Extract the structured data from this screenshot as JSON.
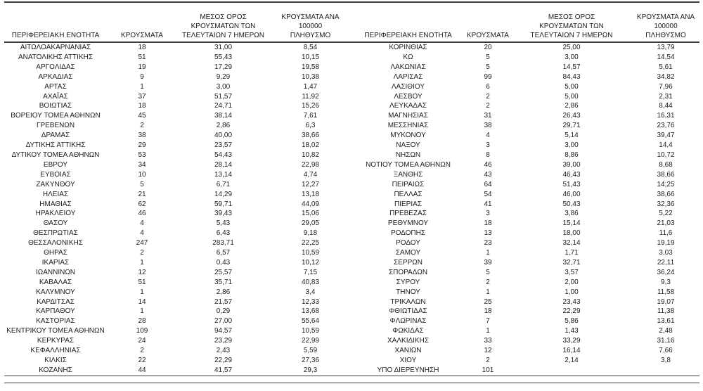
{
  "page": {
    "background_color": "#ffffff",
    "text_color": "#1c1c1c",
    "rule_color": "#3d3d3d"
  },
  "table": {
    "headers": {
      "region": "ΠΕΡΙΦΕΡΕΙΑΚΗ ΕΝΟΤΗΤΑ",
      "cases": "ΚΡΟΥΣΜΑΤΑ",
      "avg7": "ΜΕΣΟΣ ΟΡΟΣ\nΚΡΟΥΣΜΑΤΩΝ ΤΩΝ\nΤΕΛΕΥΤΑΙΩΝ 7 ΗΜΕΡΩΝ",
      "per100k": "ΚΡΟΥΣΜΑΤΑ ΑΝΑ 100000\nΠΛΗΘΥΣΜΟ"
    },
    "left_rows": [
      [
        "ΑΙΤΩΛΟΑΚΑΡΝΑΝΙΑΣ",
        "18",
        "31,00",
        "8,54"
      ],
      [
        "ΑΝΑΤΟΛΙΚΗΣ ΑΤΤΙΚΗΣ",
        "51",
        "55,43",
        "10,15"
      ],
      [
        "ΑΡΓΟΛΙΔΑΣ",
        "19",
        "17,29",
        "19,58"
      ],
      [
        "ΑΡΚΑΔΙΑΣ",
        "9",
        "9,29",
        "10,38"
      ],
      [
        "ΑΡΤΑΣ",
        "1",
        "3,00",
        "1,47"
      ],
      [
        "ΑΧΑΪΑΣ",
        "37",
        "51,57",
        "11,92"
      ],
      [
        "ΒΟΙΩΤΙΑΣ",
        "18",
        "24,71",
        "15,26"
      ],
      [
        "ΒΟΡΕΙΟΥ ΤΟΜΕΑ ΑΘΗΝΩΝ",
        "45",
        "38,14",
        "7,61"
      ],
      [
        "ΓΡΕΒΕΝΩΝ",
        "2",
        "2,86",
        "6,3"
      ],
      [
        "ΔΡΑΜΑΣ",
        "38",
        "40,00",
        "38,66"
      ],
      [
        "ΔΥΤΙΚΗΣ ΑΤΤΙΚΗΣ",
        "29",
        "23,57",
        "18,02"
      ],
      [
        "ΔΥΤΙΚΟΥ ΤΟΜΕΑ ΑΘΗΝΩΝ",
        "53",
        "54,43",
        "10,82"
      ],
      [
        "ΕΒΡΟΥ",
        "34",
        "28,14",
        "22,98"
      ],
      [
        "ΕΥΒΟΙΑΣ",
        "10",
        "13,14",
        "4,74"
      ],
      [
        "ΖΑΚΥΝΘΟΥ",
        "5",
        "6,71",
        "12,27"
      ],
      [
        "ΗΛΕΙΑΣ",
        "21",
        "14,29",
        "13,18"
      ],
      [
        "ΗΜΑΘΙΑΣ",
        "62",
        "59,71",
        "44,09"
      ],
      [
        "ΗΡΑΚΛΕΙΟΥ",
        "46",
        "39,43",
        "15,06"
      ],
      [
        "ΘΑΣΟΥ",
        "4",
        "5,43",
        "29,05"
      ],
      [
        "ΘΕΣΠΡΩΤΙΑΣ",
        "4",
        "6,43",
        "9,18"
      ],
      [
        "ΘΕΣΣΑΛΟΝΙΚΗΣ",
        "247",
        "283,71",
        "22,25"
      ],
      [
        "ΘΗΡΑΣ",
        "2",
        "6,57",
        "10,59"
      ],
      [
        "ΙΚΑΡΙΑΣ",
        "1",
        "0,43",
        "10,12"
      ],
      [
        "ΙΩΑΝΝΙΝΩΝ",
        "12",
        "25,57",
        "7,15"
      ],
      [
        "ΚΑΒΑΛΑΣ",
        "51",
        "35,71",
        "40,83"
      ],
      [
        "ΚΑΛΥΜΝΟΥ",
        "1",
        "2,86",
        "3,4"
      ],
      [
        "ΚΑΡΔΙΤΣΑΣ",
        "14",
        "21,57",
        "12,33"
      ],
      [
        "ΚΑΡΠΑΘΟΥ",
        "1",
        "0,29",
        "13,68"
      ],
      [
        "ΚΑΣΤΟΡΙΑΣ",
        "28",
        "27,00",
        "55,64"
      ],
      [
        "ΚΕΝΤΡΙΚΟΥ ΤΟΜΕΑ ΑΘΗΝΩΝ",
        "109",
        "94,57",
        "10,59"
      ],
      [
        "ΚΕΡΚΥΡΑΣ",
        "24",
        "23,29",
        "22,99"
      ],
      [
        "ΚΕΦΑΛΛΗΝΙΑΣ",
        "2",
        "2,43",
        "5,59"
      ],
      [
        "ΚΙΛΚΙΣ",
        "22",
        "22,29",
        "27,36"
      ],
      [
        "ΚΟΖΑΝΗΣ",
        "44",
        "41,57",
        "29,3"
      ]
    ],
    "right_rows": [
      [
        "ΚΟΡΙΝΘΙΑΣ",
        "20",
        "25,00",
        "13,79"
      ],
      [
        "ΚΩ",
        "5",
        "3,00",
        "14,54"
      ],
      [
        "ΛΑΚΩΝΙΑΣ",
        "5",
        "14,57",
        "5,61"
      ],
      [
        "ΛΑΡΙΣΑΣ",
        "99",
        "84,43",
        "34,82"
      ],
      [
        "ΛΑΣΙΘΙΟΥ",
        "6",
        "5,00",
        "7,96"
      ],
      [
        "ΛΕΣΒΟΥ",
        "2",
        "5,00",
        "2,31"
      ],
      [
        "ΛΕΥΚΑΔΑΣ",
        "2",
        "2,86",
        "8,44"
      ],
      [
        "ΜΑΓΝΗΣΙΑΣ",
        "31",
        "26,43",
        "16,31"
      ],
      [
        "ΜΕΣΣΗΝΙΑΣ",
        "38",
        "29,71",
        "23,76"
      ],
      [
        "ΜΥΚΟΝΟΥ",
        "4",
        "5,14",
        "39,47"
      ],
      [
        "ΝΑΞΟΥ",
        "3",
        "3,00",
        "14,4"
      ],
      [
        "ΝΗΣΩΝ",
        "8",
        "8,86",
        "10,72"
      ],
      [
        "ΝΟΤΙΟΥ ΤΟΜΕΑ ΑΘΗΝΩΝ",
        "46",
        "39,00",
        "8,68"
      ],
      [
        "ΞΑΝΘΗΣ",
        "43",
        "46,43",
        "38,66"
      ],
      [
        "ΠΕΙΡΑΙΩΣ",
        "64",
        "51,43",
        "14,25"
      ],
      [
        "ΠΕΛΛΑΣ",
        "54",
        "46,00",
        "38,66"
      ],
      [
        "ΠΙΕΡΙΑΣ",
        "41",
        "50,43",
        "32,36"
      ],
      [
        "ΠΡΕΒΕΖΑΣ",
        "3",
        "3,86",
        "5,22"
      ],
      [
        "ΡΕΘΥΜΝΟΥ",
        "18",
        "15,14",
        "21,03"
      ],
      [
        "ΡΟΔΟΠΗΣ",
        "13",
        "18,00",
        "11,6"
      ],
      [
        "ΡΟΔΟΥ",
        "23",
        "32,14",
        "19,19"
      ],
      [
        "ΣΑΜΟΥ",
        "1",
        "1,71",
        "3,03"
      ],
      [
        "ΣΕΡΡΩΝ",
        "39",
        "32,71",
        "22,11"
      ],
      [
        "ΣΠΟΡΑΔΩΝ",
        "5",
        "3,57",
        "36,24"
      ],
      [
        "ΣΥΡΟΥ",
        "2",
        "2,00",
        "9,3"
      ],
      [
        "ΤΗΝΟΥ",
        "1",
        "1,00",
        "11,58"
      ],
      [
        "ΤΡΙΚΑΛΩΝ",
        "25",
        "23,43",
        "19,07"
      ],
      [
        "ΦΘΙΩΤΙΔΑΣ",
        "18",
        "22,29",
        "11,38"
      ],
      [
        "ΦΛΩΡΙΝΑΣ",
        "7",
        "5,86",
        "13,61"
      ],
      [
        "ΦΩΚΙΔΑΣ",
        "1",
        "1,43",
        "2,48"
      ],
      [
        "ΧΑΛΚΙΔΙΚΗΣ",
        "33",
        "33,29",
        "31,16"
      ],
      [
        "ΧΑΝΙΩΝ",
        "12",
        "16,14",
        "7,66"
      ],
      [
        "ΧΙΟΥ",
        "2",
        "2,14",
        "3,8"
      ],
      [
        "ΥΠΟ ΔΙΕΡΕΥΝΗΣΗ",
        "101",
        "",
        ""
      ]
    ]
  }
}
